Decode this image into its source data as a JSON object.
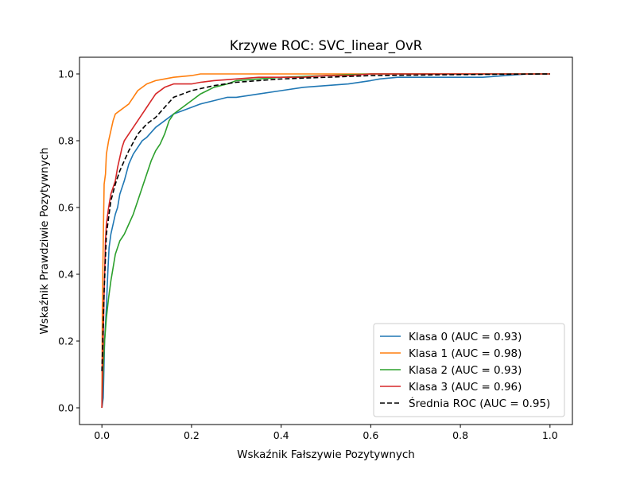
{
  "chart_data": {
    "type": "line",
    "title": "Krzywe ROC: SVC_linear_OvR",
    "xlabel": "Wskaźnik Fałszywie Pozytywnych",
    "ylabel": "Wskaźnik Prawdziwie Pozytywnych",
    "xlim": [
      -0.05,
      1.05
    ],
    "ylim": [
      -0.05,
      1.05
    ],
    "xticks": [
      "0.0",
      "0.2",
      "0.4",
      "0.6",
      "0.8",
      "1.0"
    ],
    "yticks": [
      "0.0",
      "0.2",
      "0.4",
      "0.6",
      "0.8",
      "1.0"
    ],
    "grid": false,
    "legend_position": "lower right",
    "series": [
      {
        "name": "Klasa 0 (AUC = 0.93)",
        "color": "#1f77b4",
        "dashed": false,
        "x": [
          0,
          0.003,
          0.006,
          0.01,
          0.013,
          0.016,
          0.02,
          0.025,
          0.03,
          0.035,
          0.04,
          0.05,
          0.06,
          0.07,
          0.08,
          0.09,
          0.1,
          0.12,
          0.14,
          0.16,
          0.18,
          0.2,
          0.22,
          0.25,
          0.28,
          0.3,
          0.35,
          0.4,
          0.45,
          0.5,
          0.55,
          0.6,
          0.62,
          0.66,
          0.75,
          0.85,
          0.95,
          1.0
        ],
        "y": [
          0,
          0.03,
          0.2,
          0.3,
          0.4,
          0.48,
          0.52,
          0.55,
          0.58,
          0.6,
          0.64,
          0.68,
          0.73,
          0.76,
          0.78,
          0.8,
          0.81,
          0.84,
          0.86,
          0.88,
          0.89,
          0.9,
          0.91,
          0.92,
          0.93,
          0.93,
          0.94,
          0.95,
          0.96,
          0.965,
          0.97,
          0.98,
          0.985,
          0.99,
          0.99,
          0.99,
          1.0,
          1.0
        ]
      },
      {
        "name": "Klasa 1 (AUC = 0.98)",
        "color": "#ff7f0e",
        "dashed": false,
        "x": [
          0,
          0.001,
          0.003,
          0.005,
          0.008,
          0.01,
          0.015,
          0.02,
          0.025,
          0.03,
          0.04,
          0.05,
          0.06,
          0.07,
          0.08,
          0.1,
          0.12,
          0.14,
          0.16,
          0.2,
          0.22,
          0.3,
          0.5,
          0.7,
          1.0
        ],
        "y": [
          0,
          0.3,
          0.5,
          0.67,
          0.7,
          0.76,
          0.8,
          0.83,
          0.86,
          0.88,
          0.89,
          0.9,
          0.91,
          0.93,
          0.95,
          0.97,
          0.98,
          0.985,
          0.99,
          0.995,
          1.0,
          1.0,
          1.0,
          1.0,
          1.0
        ]
      },
      {
        "name": "Klasa 2 (AUC = 0.93)",
        "color": "#2ca02c",
        "dashed": false,
        "x": [
          0,
          0.003,
          0.006,
          0.01,
          0.015,
          0.02,
          0.025,
          0.03,
          0.04,
          0.05,
          0.06,
          0.07,
          0.08,
          0.09,
          0.1,
          0.11,
          0.12,
          0.13,
          0.14,
          0.15,
          0.16,
          0.18,
          0.2,
          0.22,
          0.25,
          0.28,
          0.3,
          0.35,
          0.4,
          0.5,
          0.6,
          0.7,
          0.8,
          1.0
        ],
        "y": [
          0,
          0.12,
          0.2,
          0.27,
          0.33,
          0.38,
          0.42,
          0.46,
          0.5,
          0.52,
          0.55,
          0.58,
          0.62,
          0.66,
          0.7,
          0.74,
          0.77,
          0.79,
          0.82,
          0.86,
          0.88,
          0.9,
          0.92,
          0.94,
          0.96,
          0.97,
          0.98,
          0.985,
          0.99,
          0.995,
          1.0,
          1.0,
          1.0,
          1.0
        ]
      },
      {
        "name": "Klasa 3 (AUC = 0.96)",
        "color": "#d62728",
        "dashed": false,
        "x": [
          0,
          0.002,
          0.005,
          0.008,
          0.01,
          0.015,
          0.02,
          0.025,
          0.03,
          0.035,
          0.04,
          0.045,
          0.05,
          0.06,
          0.07,
          0.08,
          0.09,
          0.1,
          0.11,
          0.12,
          0.14,
          0.16,
          0.2,
          0.22,
          0.25,
          0.3,
          0.35,
          0.45,
          0.5,
          0.55,
          0.6,
          0.62,
          1.0
        ],
        "y": [
          0,
          0.15,
          0.35,
          0.5,
          0.55,
          0.6,
          0.64,
          0.66,
          0.68,
          0.72,
          0.75,
          0.78,
          0.8,
          0.82,
          0.84,
          0.86,
          0.88,
          0.9,
          0.92,
          0.94,
          0.96,
          0.97,
          0.97,
          0.975,
          0.98,
          0.985,
          0.99,
          0.99,
          0.995,
          0.995,
          1.0,
          1.0,
          1.0
        ]
      },
      {
        "name": "Średnia ROC (AUC = 0.95)",
        "color": "#000000",
        "dashed": true,
        "x": [
          0,
          0.005,
          0.01,
          0.02,
          0.03,
          0.04,
          0.05,
          0.06,
          0.08,
          0.1,
          0.12,
          0.14,
          0.16,
          0.2,
          0.25,
          0.3,
          0.35,
          0.4,
          0.5,
          0.6,
          0.8,
          1.0
        ],
        "y": [
          0.11,
          0.35,
          0.52,
          0.62,
          0.67,
          0.71,
          0.74,
          0.77,
          0.82,
          0.85,
          0.87,
          0.9,
          0.93,
          0.95,
          0.965,
          0.975,
          0.98,
          0.985,
          0.99,
          0.995,
          0.998,
          1.0
        ]
      }
    ]
  }
}
